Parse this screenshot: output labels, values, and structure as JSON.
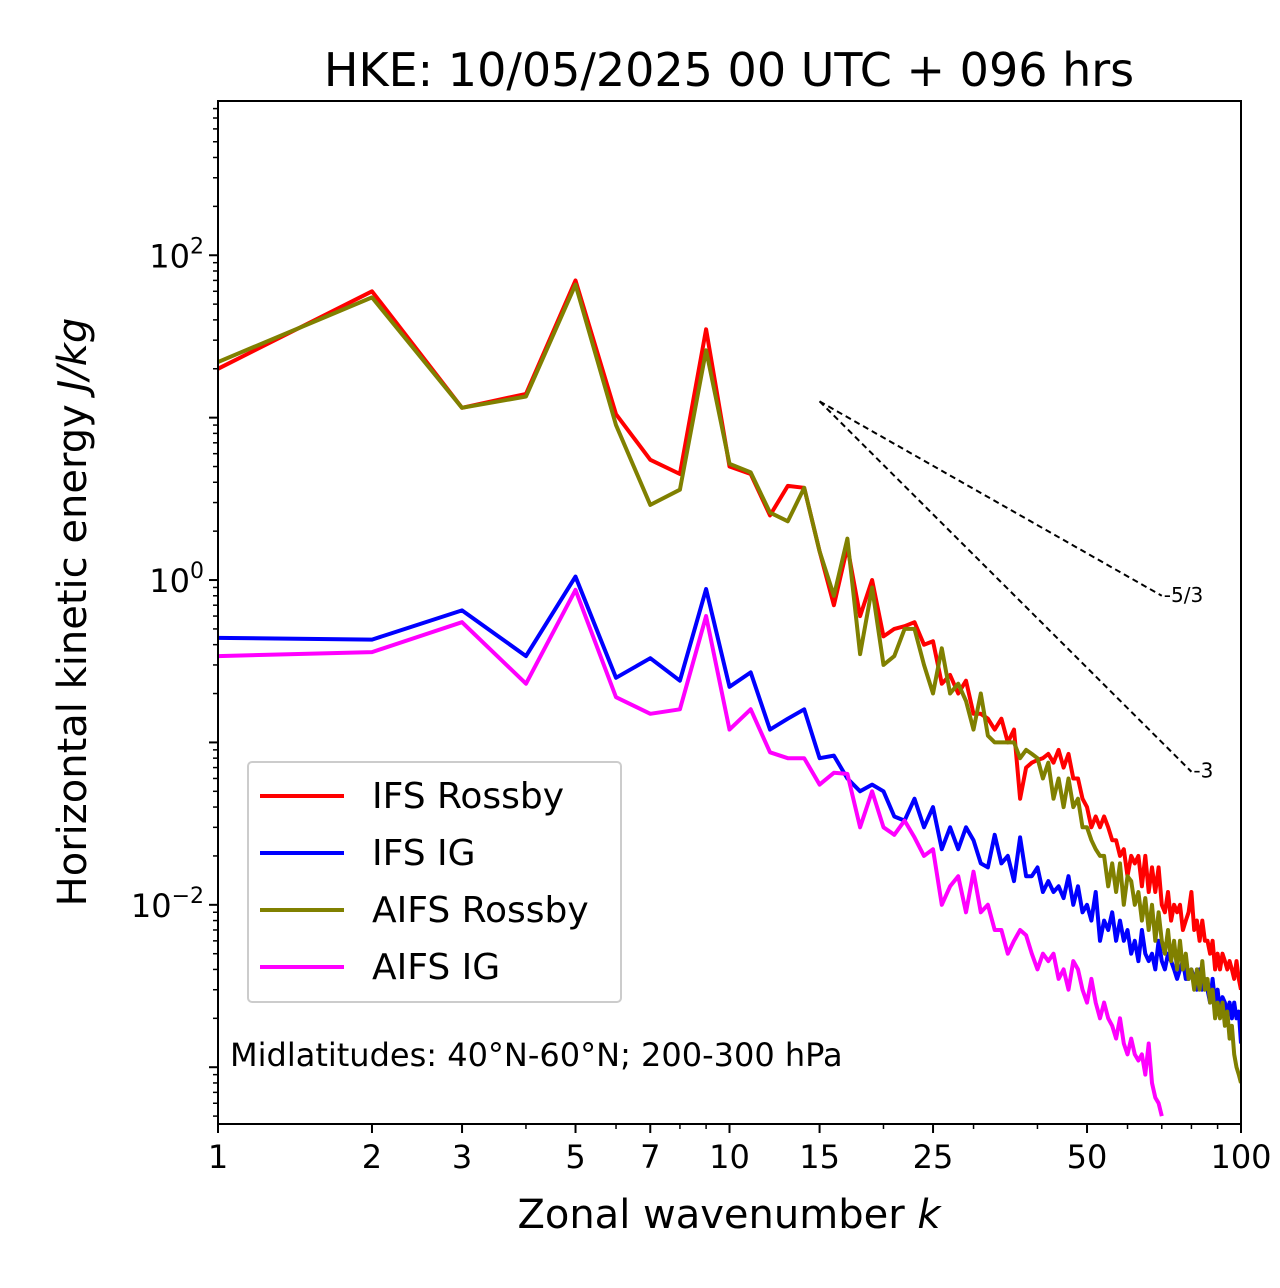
{
  "chart_data": {
    "type": "line",
    "title": "HKE: 10/05/2025 00 UTC + 096 hrs",
    "xlabel": "Zonal wavenumber ",
    "xlabel_italic": "k",
    "ylabel": "Horizontal kinetic energy ",
    "ylabel_italic": "J/kg",
    "xscale": "log",
    "yscale": "log",
    "xlim": [
      1,
      100
    ],
    "ylim": [
      0.000447,
      891
    ],
    "xticks": [
      1,
      2,
      3,
      5,
      7,
      10,
      15,
      25,
      50,
      100
    ],
    "xticklabels": [
      "1",
      "2",
      "3",
      "5",
      "7",
      "10",
      "15",
      "25",
      "50",
      "100"
    ],
    "yticks": [
      {
        "value": 100,
        "base": "10",
        "exp": "2"
      },
      {
        "value": 1,
        "base": "10",
        "exp": "0"
      },
      {
        "value": 0.01,
        "base": "10",
        "exp": "−2"
      }
    ],
    "annotation": "Midlatitudes: 40°N-60°N; 200-300 hPa",
    "reference_lines": [
      {
        "label": "-5/3",
        "slope": -1.6667,
        "x": [
          15,
          70
        ],
        "y": [
          12.6,
          0.8
        ]
      },
      {
        "label": "-3",
        "slope": -3,
        "x": [
          15,
          80
        ],
        "y": [
          12.6,
          0.066
        ]
      }
    ],
    "legend_position": "lower-left",
    "series": [
      {
        "name": "IFS Rossby",
        "color": "#ff0000",
        "x": [
          1,
          2,
          3,
          4,
          5,
          6,
          7,
          8,
          9,
          10,
          11,
          12,
          13,
          14,
          15,
          16,
          17,
          18,
          19,
          20,
          21,
          22,
          23,
          24,
          25,
          26,
          27,
          28,
          29,
          30,
          31,
          32,
          33,
          34,
          35,
          36,
          37,
          38,
          39,
          40,
          41,
          42,
          43,
          44,
          45,
          46,
          47,
          48,
          49,
          50,
          51,
          52,
          53,
          54,
          55,
          56,
          57,
          58,
          59,
          60,
          61,
          62,
          63,
          64,
          65,
          66,
          67,
          68,
          69,
          70,
          71,
          72,
          73,
          74,
          75,
          76,
          77,
          78,
          79,
          80,
          81,
          82,
          83,
          84,
          85,
          86,
          87,
          88,
          89,
          90,
          91,
          92,
          93,
          94,
          95,
          96,
          97,
          98,
          99,
          100
        ],
        "y": [
          20.0,
          60.0,
          11.5,
          14.0,
          70.0,
          10.5,
          5.5,
          4.5,
          35.0,
          5.0,
          4.5,
          2.5,
          3.8,
          3.7,
          1.5,
          0.7,
          1.6,
          0.6,
          1.0,
          0.45,
          0.5,
          0.52,
          0.55,
          0.4,
          0.42,
          0.23,
          0.26,
          0.2,
          0.24,
          0.15,
          0.15,
          0.14,
          0.12,
          0.14,
          0.1,
          0.12,
          0.045,
          0.07,
          0.075,
          0.078,
          0.08,
          0.085,
          0.075,
          0.09,
          0.07,
          0.085,
          0.06,
          0.06,
          0.045,
          0.04,
          0.03,
          0.035,
          0.03,
          0.035,
          0.03,
          0.025,
          0.025,
          0.02,
          0.022,
          0.015,
          0.02,
          0.018,
          0.02,
          0.013,
          0.02,
          0.012,
          0.017,
          0.012,
          0.017,
          0.01,
          0.009,
          0.012,
          0.008,
          0.01,
          0.009,
          0.01,
          0.007,
          0.008,
          0.009,
          0.012,
          0.007,
          0.008,
          0.006,
          0.008,
          0.006,
          0.006,
          0.005,
          0.006,
          0.004,
          0.005,
          0.004,
          0.005,
          0.0045,
          0.004,
          0.0045,
          0.004,
          0.0035,
          0.0045,
          0.0035,
          0.003
        ]
      },
      {
        "name": "IFS IG",
        "color": "#0000ff",
        "x": [
          1,
          2,
          3,
          4,
          5,
          6,
          7,
          8,
          9,
          10,
          11,
          12,
          13,
          14,
          15,
          16,
          17,
          18,
          19,
          20,
          21,
          22,
          23,
          24,
          25,
          26,
          27,
          28,
          29,
          30,
          31,
          32,
          33,
          34,
          35,
          36,
          37,
          38,
          39,
          40,
          41,
          42,
          43,
          44,
          45,
          46,
          47,
          48,
          49,
          50,
          51,
          52,
          53,
          54,
          55,
          56,
          57,
          58,
          59,
          60,
          61,
          62,
          63,
          64,
          65,
          66,
          67,
          68,
          69,
          70,
          71,
          72,
          73,
          74,
          75,
          76,
          77,
          78,
          79,
          80,
          81,
          82,
          83,
          84,
          85,
          86,
          87,
          88,
          89,
          90,
          91,
          92,
          93,
          94,
          95,
          96,
          97,
          98,
          99,
          100
        ],
        "y": [
          0.44,
          0.43,
          0.65,
          0.34,
          1.05,
          0.25,
          0.33,
          0.24,
          0.88,
          0.22,
          0.27,
          0.12,
          0.14,
          0.16,
          0.08,
          0.083,
          0.06,
          0.05,
          0.055,
          0.05,
          0.035,
          0.033,
          0.045,
          0.03,
          0.04,
          0.022,
          0.03,
          0.022,
          0.03,
          0.025,
          0.018,
          0.017,
          0.027,
          0.018,
          0.02,
          0.014,
          0.026,
          0.015,
          0.015,
          0.017,
          0.012,
          0.014,
          0.012,
          0.013,
          0.011,
          0.015,
          0.01,
          0.013,
          0.009,
          0.01,
          0.008,
          0.012,
          0.006,
          0.008,
          0.007,
          0.009,
          0.006,
          0.008,
          0.006,
          0.007,
          0.005,
          0.006,
          0.0045,
          0.007,
          0.005,
          0.0045,
          0.005,
          0.004,
          0.006,
          0.0045,
          0.004,
          0.005,
          0.0045,
          0.004,
          0.0035,
          0.004,
          0.0045,
          0.0035,
          0.0035,
          0.004,
          0.0035,
          0.003,
          0.004,
          0.003,
          0.0035,
          0.003,
          0.0025,
          0.0035,
          0.0025,
          0.003,
          0.0022,
          0.0027,
          0.0025,
          0.0022,
          0.0025,
          0.002,
          0.0025,
          0.002,
          0.0022,
          0.0014
        ]
      },
      {
        "name": "AIFS Rossby",
        "color": "#808000",
        "x": [
          1,
          2,
          3,
          4,
          5,
          6,
          7,
          8,
          9,
          10,
          11,
          12,
          13,
          14,
          15,
          16,
          17,
          18,
          19,
          20,
          21,
          22,
          23,
          24,
          25,
          26,
          27,
          28,
          29,
          30,
          31,
          32,
          33,
          34,
          35,
          36,
          37,
          38,
          39,
          40,
          41,
          42,
          43,
          44,
          45,
          46,
          47,
          48,
          49,
          50,
          51,
          52,
          53,
          54,
          55,
          56,
          57,
          58,
          59,
          60,
          61,
          62,
          63,
          64,
          65,
          66,
          67,
          68,
          69,
          70,
          71,
          72,
          73,
          74,
          75,
          76,
          77,
          78,
          79,
          80,
          81,
          82,
          83,
          84,
          85,
          86,
          87,
          88,
          89,
          90,
          91,
          92,
          93,
          94,
          95,
          96,
          97,
          98,
          99,
          100
        ],
        "y": [
          22.0,
          55.0,
          11.5,
          13.5,
          66.0,
          9.0,
          2.9,
          3.6,
          26.0,
          5.2,
          4.6,
          2.6,
          2.3,
          3.7,
          1.5,
          0.8,
          1.8,
          0.35,
          0.9,
          0.3,
          0.34,
          0.5,
          0.5,
          0.3,
          0.2,
          0.38,
          0.2,
          0.23,
          0.18,
          0.12,
          0.2,
          0.11,
          0.1,
          0.1,
          0.1,
          0.1,
          0.08,
          0.09,
          0.085,
          0.08,
          0.06,
          0.075,
          0.045,
          0.06,
          0.04,
          0.06,
          0.04,
          0.045,
          0.03,
          0.03,
          0.025,
          0.022,
          0.02,
          0.02,
          0.013,
          0.018,
          0.012,
          0.018,
          0.01,
          0.015,
          0.014,
          0.01,
          0.012,
          0.008,
          0.011,
          0.007,
          0.01,
          0.006,
          0.009,
          0.006,
          0.005,
          0.007,
          0.0045,
          0.006,
          0.004,
          0.006,
          0.004,
          0.005,
          0.0035,
          0.004,
          0.003,
          0.004,
          0.003,
          0.0045,
          0.003,
          0.0035,
          0.0025,
          0.003,
          0.002,
          0.0025,
          0.002,
          0.0025,
          0.0018,
          0.0022,
          0.0015,
          0.0018,
          0.0012,
          0.001,
          0.0009,
          0.0008
        ]
      },
      {
        "name": "AIFS IG",
        "color": "#ff00ff",
        "x": [
          1,
          2,
          3,
          4,
          5,
          6,
          7,
          8,
          9,
          10,
          11,
          12,
          13,
          14,
          15,
          16,
          17,
          18,
          19,
          20,
          21,
          22,
          23,
          24,
          25,
          26,
          27,
          28,
          29,
          30,
          31,
          32,
          33,
          34,
          35,
          36,
          37,
          38,
          39,
          40,
          41,
          42,
          43,
          44,
          45,
          46,
          47,
          48,
          49,
          50,
          51,
          52,
          53,
          54,
          55,
          56,
          57,
          58,
          59,
          60,
          61,
          62,
          63,
          64,
          65,
          66,
          67,
          68,
          69,
          70
        ],
        "y": [
          0.34,
          0.36,
          0.55,
          0.23,
          0.87,
          0.19,
          0.15,
          0.16,
          0.6,
          0.12,
          0.16,
          0.087,
          0.08,
          0.08,
          0.055,
          0.065,
          0.064,
          0.03,
          0.05,
          0.03,
          0.027,
          0.033,
          0.026,
          0.02,
          0.022,
          0.01,
          0.013,
          0.015,
          0.009,
          0.016,
          0.009,
          0.01,
          0.007,
          0.007,
          0.005,
          0.006,
          0.007,
          0.0065,
          0.005,
          0.004,
          0.005,
          0.0045,
          0.005,
          0.0035,
          0.004,
          0.003,
          0.0045,
          0.004,
          0.003,
          0.0025,
          0.0035,
          0.0025,
          0.002,
          0.0025,
          0.002,
          0.0018,
          0.0015,
          0.002,
          0.0014,
          0.0012,
          0.0015,
          0.0012,
          0.0011,
          0.0012,
          0.0009,
          0.0014,
          0.0008,
          0.00065,
          0.0006,
          0.0005
        ]
      }
    ]
  }
}
